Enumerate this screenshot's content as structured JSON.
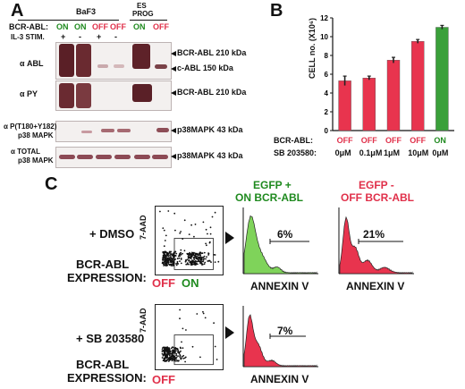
{
  "panels": {
    "a": "A",
    "b": "B",
    "c": "C"
  },
  "panel_a": {
    "baf3": "BaF3",
    "es_prog_1": "ES",
    "es_prog_2": "PROG",
    "row_bcr_abl": "BCR-ABL:",
    "row_il3": "IL-3 STIM.",
    "bcr_values": [
      {
        "label": "ON",
        "color": "#1f8a1f"
      },
      {
        "label": "ON",
        "color": "#1f8a1f"
      },
      {
        "label": "OFF",
        "color": "#e0304a"
      },
      {
        "label": "OFF",
        "color": "#e0304a"
      },
      {
        "label": "ON",
        "color": "#1f8a1f"
      },
      {
        "label": "OFF",
        "color": "#e0304a"
      }
    ],
    "il3_values": [
      "+",
      "-",
      "+",
      "-"
    ],
    "blot_labels": [
      "α ABL",
      "α PY",
      "α P(T180+Y182)",
      "p38 MAPK",
      "α  TOTAL",
      "p38 MAPK"
    ],
    "band_labels": [
      "BCR-ABL 210 kDa",
      "c-ABL 150 kDa",
      "BCR-ABL 210 kDa",
      "p38MAPK 43 kDa",
      "p38MAPK 43 kDa"
    ]
  },
  "chart_data": {
    "type": "bar",
    "ylabel": "CELL no. (X10⁶)",
    "ylim": [
      0,
      12
    ],
    "yticks": [
      0,
      2,
      4,
      6,
      8,
      10,
      12
    ],
    "row1_label": "BCR-ABL:",
    "row2_label": "SB 203580:",
    "categories": [
      "OFF 0μM",
      "OFF 0.1μM",
      "OFF 1μM",
      "OFF 10μM",
      "ON 0μM"
    ],
    "bcr_abl": [
      "OFF",
      "OFF",
      "OFF",
      "OFF",
      "ON"
    ],
    "sb203580": [
      "0μM",
      "0.1μM",
      "1μM",
      "10μM",
      "0μM"
    ],
    "values": [
      5.3,
      5.6,
      7.5,
      9.5,
      11.0
    ],
    "errors": [
      0.5,
      0.2,
      0.3,
      0.2,
      0.2
    ],
    "colors": [
      "#e8344e",
      "#e8344e",
      "#e8344e",
      "#e8344e",
      "#3aa03a"
    ],
    "on_color": "#1f8a1f",
    "off_color": "#e0304a"
  },
  "panel_c": {
    "header_green_1": "EGFP +",
    "header_green_2": "ON BCR-ABL",
    "header_red_1": "EGFP -",
    "header_red_2": "OFF BCR-ABL",
    "dmso": "+ DMSO",
    "sb": "+ SB 203580",
    "yaxis": "7-AAD",
    "expr_1": "BCR-ABL",
    "expr_2": "EXPRESSION:",
    "off": "OFF",
    "on": "ON",
    "annexin": "ANNEXIN V",
    "pct_green": "6%",
    "pct_red": "21%",
    "pct_sb": "7%",
    "green": "#7fd35a",
    "red": "#e8344e"
  }
}
